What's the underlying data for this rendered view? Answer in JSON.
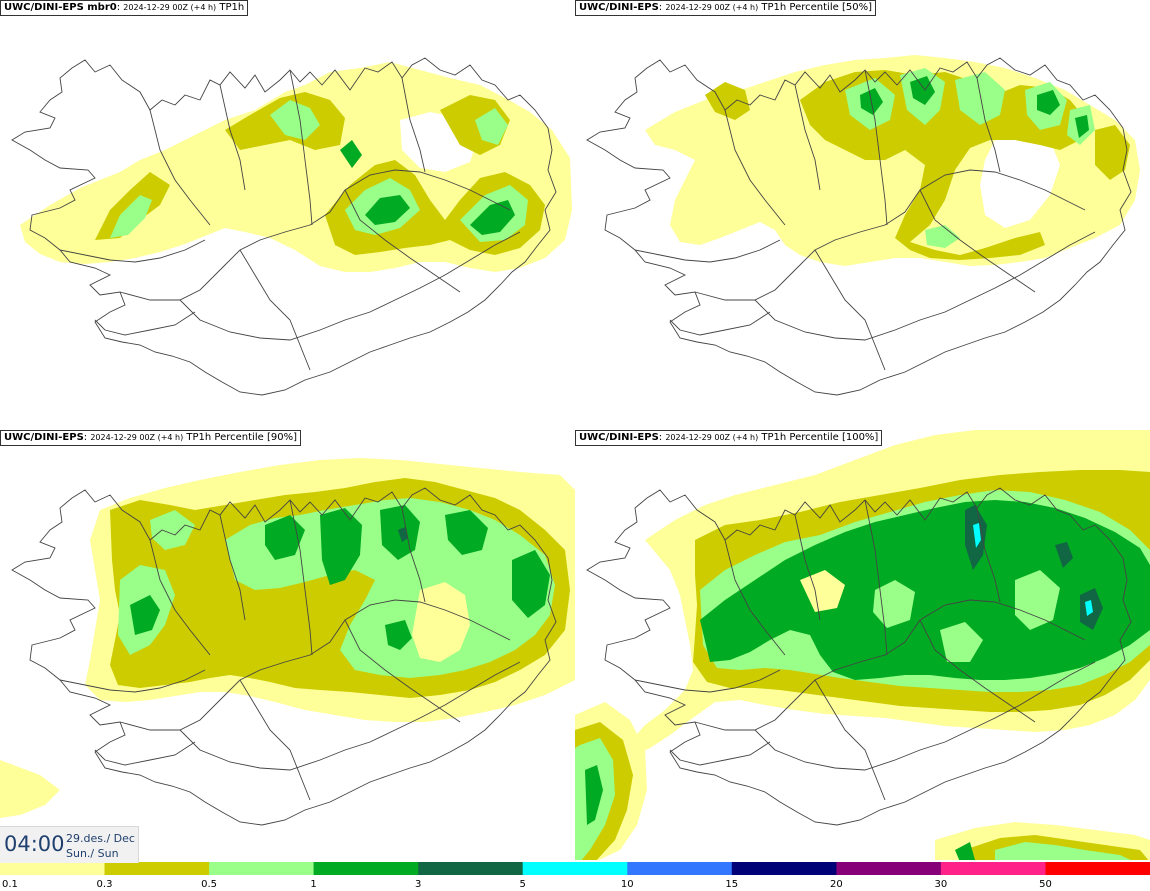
{
  "panels": [
    {
      "title_bold": "UWC/DINI-EPS mbr0",
      "title_small": "2024-12-29 00Z (+4 h)",
      "title_tail": "TP1h"
    },
    {
      "title_bold": "UWC/DINI-EPS",
      "title_small": "2024-12-29 00Z (+4 h)",
      "title_tail": "TP1h Percentile [50%]"
    },
    {
      "title_bold": "UWC/DINI-EPS",
      "title_small": "2024-12-29 00Z (+4 h)",
      "title_tail": "TP1h Percentile [90%]"
    },
    {
      "title_bold": "UWC/DINI-EPS",
      "title_small": "2024-12-29 00Z (+4 h)",
      "title_tail": "TP1h Percentile [100%]"
    }
  ],
  "time": {
    "value": "04:00",
    "date": "29.des./ Dec",
    "day": "Sun./ Sun"
  },
  "legend": {
    "labels": [
      "0.1",
      "0.3",
      "0.5",
      "1",
      "3",
      "5",
      "10",
      "15",
      "20",
      "30",
      "50"
    ],
    "colors": [
      "#ffff99",
      "#cccc00",
      "#99ff88",
      "#00aa22",
      "#116644",
      "#00ffff",
      "#3377ff",
      "#000077",
      "#880077",
      "#ff2288",
      "#ff0000"
    ]
  },
  "colors": {
    "outline": "#444444",
    "title_border": "#333333",
    "time_text": "#1f3f6e"
  }
}
